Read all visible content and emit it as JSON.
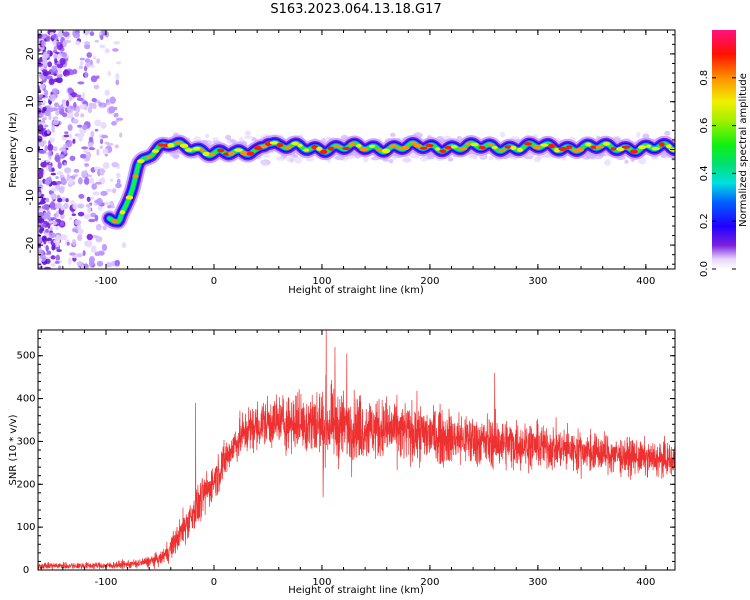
{
  "title": "S163.2023.064.13.18.G17",
  "colors": {
    "snr_line": "#ee3030",
    "speckle": "#7a1fe0",
    "axis": "#000000"
  },
  "chart_data": [
    {
      "type": "heatmap",
      "title": "S163.2023.064.13.18.G17",
      "xlabel": "Height of straight line (km)",
      "ylabel": "Frequency (Hz)",
      "xlim": [
        -163,
        427
      ],
      "ylim": [
        -25,
        25
      ],
      "x_ticks": [
        -100,
        0,
        100,
        200,
        300,
        400
      ],
      "y_ticks": [
        -20,
        -10,
        0,
        10,
        20
      ],
      "colorbar": {
        "label": "Normalized spectral amplitude",
        "range": [
          0,
          1
        ],
        "ticks": [
          "0.0",
          "0.2",
          "0.4",
          "0.6",
          "0.8"
        ],
        "colormap": "rainbow"
      },
      "ridge": {
        "description_points": [
          {
            "x": -95,
            "y": -14.5
          },
          {
            "x": -88,
            "y": -15.5
          },
          {
            "x": -82,
            "y": -12
          },
          {
            "x": -75,
            "y": -7
          },
          {
            "x": -70,
            "y": -3
          },
          {
            "x": -60,
            "y": -1
          },
          {
            "x": -50,
            "y": 0
          },
          {
            "x": -40,
            "y": 1
          },
          {
            "x": -20,
            "y": 0.5
          },
          {
            "x": 0,
            "y": -0.8
          },
          {
            "x": 20,
            "y": -1
          },
          {
            "x": 40,
            "y": 0
          },
          {
            "x": 50,
            "y": 2
          },
          {
            "x": 60,
            "y": 0.5
          },
          {
            "x": 100,
            "y": 0.3
          },
          {
            "x": 200,
            "y": 0.5
          },
          {
            "x": 300,
            "y": 0.5
          },
          {
            "x": 427,
            "y": 0.3
          }
        ]
      }
    },
    {
      "type": "line",
      "xlabel": "Height of straight line (km)",
      "ylabel": "SNR (10 * v/v)",
      "xlim": [
        -163,
        427
      ],
      "ylim": [
        0,
        560
      ],
      "x_ticks": [
        -100,
        0,
        100,
        200,
        300,
        400
      ],
      "y_ticks": [
        0,
        100,
        200,
        300,
        400,
        500
      ],
      "envelope": {
        "x": [
          -163,
          -100,
          -70,
          -50,
          -40,
          -30,
          -20,
          -10,
          0,
          10,
          20,
          30,
          50,
          80,
          100,
          150,
          200,
          250,
          300,
          350,
          400,
          427
        ],
        "y": [
          10,
          10,
          15,
          25,
          50,
          90,
          130,
          170,
          210,
          255,
          295,
          325,
          345,
          345,
          340,
          330,
          315,
          300,
          290,
          275,
          260,
          255
        ],
        "noise": [
          6,
          6,
          8,
          12,
          20,
          30,
          35,
          35,
          35,
          35,
          35,
          40,
          45,
          55,
          65,
          55,
          50,
          45,
          40,
          35,
          30,
          30
        ]
      },
      "spikes": [
        {
          "x": -17,
          "y": 390
        },
        {
          "x": 104,
          "y": 560
        },
        {
          "x": 112,
          "y": 520
        },
        {
          "x": 101,
          "y": 170
        },
        {
          "x": 123,
          "y": 505
        },
        {
          "x": 260,
          "y": 460
        }
      ]
    }
  ]
}
